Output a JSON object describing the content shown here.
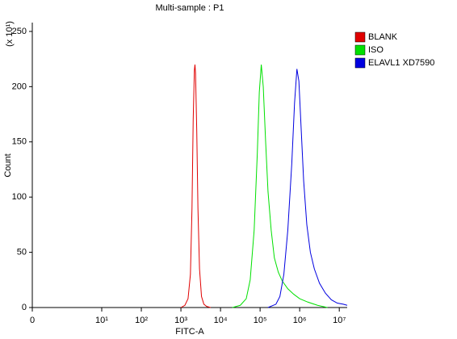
{
  "chart_data": {
    "type": "line",
    "title": "Multi-sample : P1",
    "x_label": "FITC-A",
    "y_label": "Count",
    "y_multiplier": "(x 10¹)",
    "x_scale": "log",
    "xlim": [
      0,
      15848932
    ],
    "xticks": [
      0,
      {
        "value": 10,
        "label": "10¹"
      },
      {
        "value": 100,
        "label": "10²"
      },
      {
        "value": 1000,
        "label": "10³"
      },
      {
        "value": 10000,
        "label": "10⁴"
      },
      {
        "value": 100000,
        "label": "10⁵"
      },
      {
        "value": 1000000,
        "label": "10⁶"
      },
      {
        "value": 10000000,
        "label": "10⁷"
      }
    ],
    "ylim": [
      0,
      258
    ],
    "yticks": [
      0,
      50,
      100,
      150,
      200,
      250
    ],
    "legend": "right",
    "series": [
      {
        "name": "BLANK",
        "color": "#e00000",
        "x": [
          1000,
          1259,
          1514,
          1738,
          1905,
          2042,
          2188,
          2265,
          2344,
          2512,
          2692,
          2951,
          3311,
          3802,
          4467,
          5623
        ],
        "values": [
          0,
          2,
          8,
          30,
          90,
          170,
          215,
          220,
          212,
          160,
          90,
          35,
          10,
          3,
          1,
          0
        ]
      },
      {
        "name": "ISO",
        "color": "#00e000",
        "x": [
          19953,
          31623,
          44668,
          56234,
          70795,
          85114,
          95499,
          107152,
          120226,
          138038,
          158489,
          190546,
          229087,
          288403,
          363078,
          501187,
          707946,
          1000000,
          1584893,
          2818383,
          5011872
        ],
        "values": [
          0,
          2,
          8,
          25,
          70,
          140,
          195,
          220,
          200,
          150,
          105,
          70,
          45,
          32,
          24,
          17,
          12,
          8,
          5,
          2,
          0
        ]
      },
      {
        "name": "ELAVL1 XD7590",
        "color": "#0000e0",
        "x": [
          158489,
          251189,
          316228,
          398107,
          501187,
          630957,
          741310,
          851138,
          954993,
          1096478,
          1258925,
          1513561,
          1862087,
          2344229,
          3162278,
          4466836,
          6309573,
          8912509,
          12589254,
          15848932
        ],
        "values": [
          0,
          3,
          10,
          30,
          70,
          130,
          185,
          216,
          205,
          160,
          115,
          75,
          50,
          35,
          22,
          13,
          7,
          4,
          3,
          2
        ]
      }
    ]
  }
}
